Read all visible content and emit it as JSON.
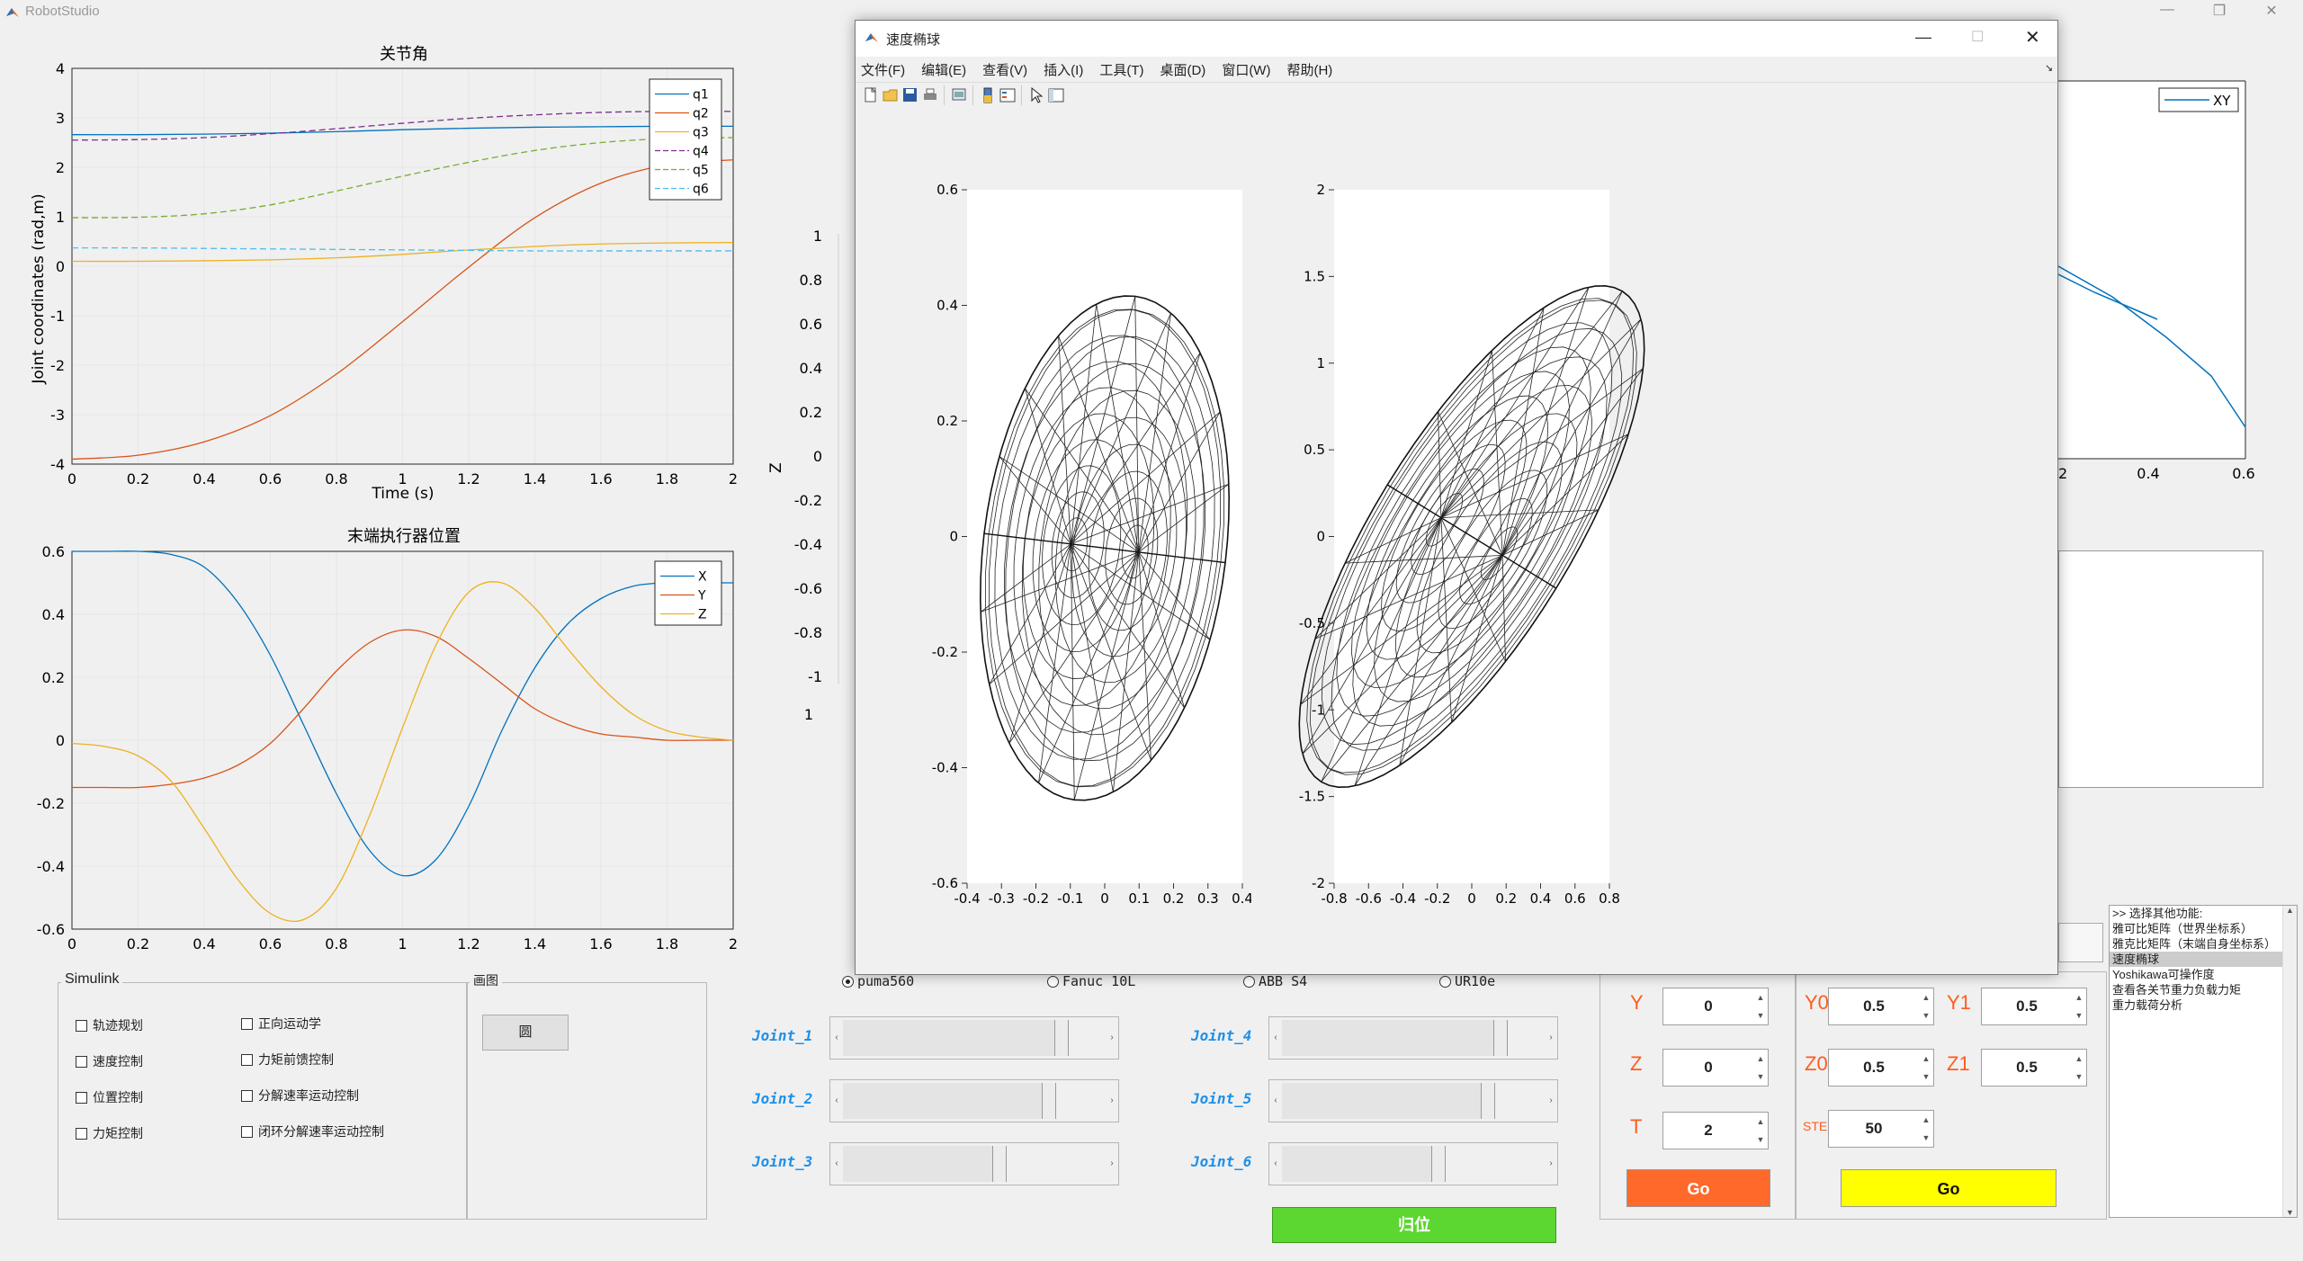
{
  "app": {
    "title": "RobotStudio"
  },
  "plot_joint": {
    "title": "关节角",
    "xlabel": "Time (s)",
    "ylabel": "Joint coordinates (rad,m)",
    "xticks": [
      "0",
      "0.2",
      "0.4",
      "0.6",
      "0.8",
      "1",
      "1.2",
      "1.4",
      "1.6",
      "1.8",
      "2"
    ],
    "yticks": [
      "4",
      "3",
      "2",
      "1",
      "0",
      "-1",
      "-2",
      "-3",
      "-4"
    ],
    "legend": [
      "q1",
      "q2",
      "q3",
      "q4",
      "q5",
      "q6"
    ]
  },
  "plot_end": {
    "title": "末端执行器位置",
    "xticks": [
      "0",
      "0.2",
      "0.4",
      "0.6",
      "0.8",
      "1",
      "1.2",
      "1.4",
      "1.6",
      "1.8",
      "2"
    ],
    "yticks": [
      "0.6",
      "0.4",
      "0.2",
      "0",
      "-0.2",
      "-0.4",
      "-0.6"
    ],
    "legend": [
      "X",
      "Y",
      "Z"
    ]
  },
  "chart_data": [
    {
      "type": "line",
      "title": "关节角",
      "xlabel": "Time (s)",
      "ylabel": "Joint coordinates (rad,m)",
      "xlim": [
        0,
        2
      ],
      "ylim": [
        -4,
        4
      ],
      "x": [
        0,
        0.2,
        0.4,
        0.6,
        0.8,
        1.0,
        1.2,
        1.4,
        1.6,
        1.8,
        2.0
      ],
      "series": [
        {
          "name": "q1",
          "color": "#0072bd",
          "dash": false,
          "values": [
            2.66,
            2.66,
            2.67,
            2.69,
            2.72,
            2.76,
            2.79,
            2.81,
            2.82,
            2.83,
            2.83
          ]
        },
        {
          "name": "q2",
          "color": "#d95319",
          "dash": false,
          "values": [
            -3.9,
            -3.82,
            -3.55,
            -3.02,
            -2.18,
            -1.12,
            -0.02,
            0.98,
            1.68,
            2.05,
            2.15
          ]
        },
        {
          "name": "q3",
          "color": "#edb120",
          "dash": false,
          "values": [
            0.1,
            0.1,
            0.11,
            0.13,
            0.17,
            0.24,
            0.33,
            0.4,
            0.45,
            0.47,
            0.48
          ]
        },
        {
          "name": "q4",
          "color": "#7e2f8e",
          "dash": true,
          "values": [
            2.55,
            2.56,
            2.6,
            2.68,
            2.78,
            2.89,
            2.99,
            3.06,
            3.11,
            3.13,
            3.13
          ]
        },
        {
          "name": "q5",
          "color": "#77ac30",
          "dash": true,
          "values": [
            0.98,
            0.99,
            1.06,
            1.24,
            1.52,
            1.82,
            2.1,
            2.34,
            2.5,
            2.58,
            2.6
          ]
        },
        {
          "name": "q6",
          "color": "#4dbeee",
          "dash": true,
          "values": [
            0.37,
            0.37,
            0.36,
            0.35,
            0.34,
            0.33,
            0.32,
            0.31,
            0.31,
            0.31,
            0.31
          ]
        }
      ],
      "legend_position": "top-right"
    },
    {
      "type": "line",
      "title": "末端执行器位置",
      "xlim": [
        0,
        2
      ],
      "ylim": [
        -0.6,
        0.6
      ],
      "x": [
        0,
        0.1,
        0.2,
        0.3,
        0.4,
        0.5,
        0.6,
        0.7,
        0.8,
        0.9,
        1.0,
        1.1,
        1.2,
        1.3,
        1.4,
        1.5,
        1.6,
        1.7,
        1.8,
        1.9,
        2.0
      ],
      "series": [
        {
          "name": "X",
          "color": "#0072bd",
          "values": [
            0.6,
            0.6,
            0.6,
            0.59,
            0.55,
            0.44,
            0.27,
            0.05,
            -0.17,
            -0.35,
            -0.43,
            -0.38,
            -0.21,
            0.03,
            0.23,
            0.37,
            0.45,
            0.49,
            0.5,
            0.5,
            0.5
          ]
        },
        {
          "name": "Y",
          "color": "#d95319",
          "values": [
            -0.15,
            -0.15,
            -0.15,
            -0.14,
            -0.12,
            -0.08,
            -0.01,
            0.1,
            0.22,
            0.31,
            0.35,
            0.33,
            0.26,
            0.18,
            0.1,
            0.05,
            0.02,
            0.01,
            0.0,
            0.0,
            0.0
          ]
        },
        {
          "name": "Z",
          "color": "#edb120",
          "values": [
            -0.01,
            -0.02,
            -0.05,
            -0.13,
            -0.28,
            -0.44,
            -0.55,
            -0.57,
            -0.47,
            -0.24,
            0.04,
            0.3,
            0.47,
            0.5,
            0.42,
            0.29,
            0.17,
            0.08,
            0.03,
            0.01,
            0.0
          ]
        }
      ],
      "legend_position": "top-right"
    }
  ],
  "background_axes": {
    "zlabel": "Z",
    "zticks": [
      "1",
      "0.8",
      "0.6",
      "0.4",
      "0.2",
      "0",
      "-0.2",
      "-0.4",
      "-0.6",
      "-0.8",
      "-1"
    ],
    "zticks_extra": "1",
    "xy_legend": "XY",
    "xy_ticks": [
      "2",
      "0.4",
      "0.6"
    ]
  },
  "simulink_panel": {
    "title": "Simulink",
    "items_left": [
      "轨迹规划",
      "速度控制",
      "位置控制",
      "力矩控制"
    ],
    "items_right": [
      "正向运动学",
      "力矩前馈控制",
      "分解速率运动控制",
      "闭环分解速率运动控制"
    ]
  },
  "circle_panel": {
    "title": "画图",
    "button": "圆"
  },
  "robots": [
    "puma560",
    "Fanuc 10L",
    "ABB S4",
    "UR10e"
  ],
  "robot_selected": 0,
  "joints": [
    {
      "label": "Joint_1",
      "position": 0.85
    },
    {
      "label": "Joint_2",
      "position": 0.8
    },
    {
      "label": "Joint_3",
      "position": 0.6
    },
    {
      "label": "Joint_4",
      "position": 0.85
    },
    {
      "label": "Joint_5",
      "position": 0.8
    },
    {
      "label": "Joint_6",
      "position": 0.6
    }
  ],
  "home_button": "归位",
  "coords": {
    "labels": [
      "Y",
      "Z",
      "T",
      "Y0",
      "Z0",
      "STEP",
      "Y1",
      "Z1"
    ],
    "values": {
      "Y": "0",
      "Z": "0",
      "T": "2",
      "Y0": "0.5",
      "Z0": "0.5",
      "STEP": "50",
      "Y1": "0.5",
      "Z1": "0.5"
    },
    "go1": "Go",
    "go2": "Go"
  },
  "functions_list": [
    ">> 选择其他功能:",
    "雅可比矩阵（世界坐标系）",
    "雅克比矩阵（末端自身坐标系）",
    "速度椭球",
    "Yoshikawa可操作度",
    "查看各关节重力负载力矩",
    "重力载荷分析"
  ],
  "functions_selected": 3,
  "figure": {
    "title": "速度椭球",
    "menu": [
      "文件(F)",
      "编辑(E)",
      "查看(V)",
      "插入(I)",
      "工具(T)",
      "桌面(D)",
      "窗口(W)",
      "帮助(H)"
    ],
    "toolbar": [
      "new-file-icon",
      "open-folder-icon",
      "save-icon",
      "print-icon",
      "link-icon",
      "colorbar-icon",
      "legend-icon",
      "pointer-icon",
      "property-inspector-icon"
    ],
    "left_axes": {
      "xticks": [
        "-0.4",
        "-0.3",
        "-0.2",
        "-0.1",
        "0",
        "0.1",
        "0.2",
        "0.3",
        "0.4"
      ],
      "yticks": [
        "0.6",
        "0.4",
        "0.2",
        "0",
        "-0.2",
        "-0.4",
        "-0.6"
      ]
    },
    "right_axes": {
      "xticks": [
        "-0.8",
        "-0.6",
        "-0.4",
        "-0.2",
        "0",
        "0.2",
        "0.4",
        "0.6",
        "0.8"
      ],
      "yticks": [
        "2",
        "1.5",
        "1",
        "0.5",
        "0",
        "-0.5",
        "-1",
        "-1.5",
        "-2"
      ]
    }
  }
}
